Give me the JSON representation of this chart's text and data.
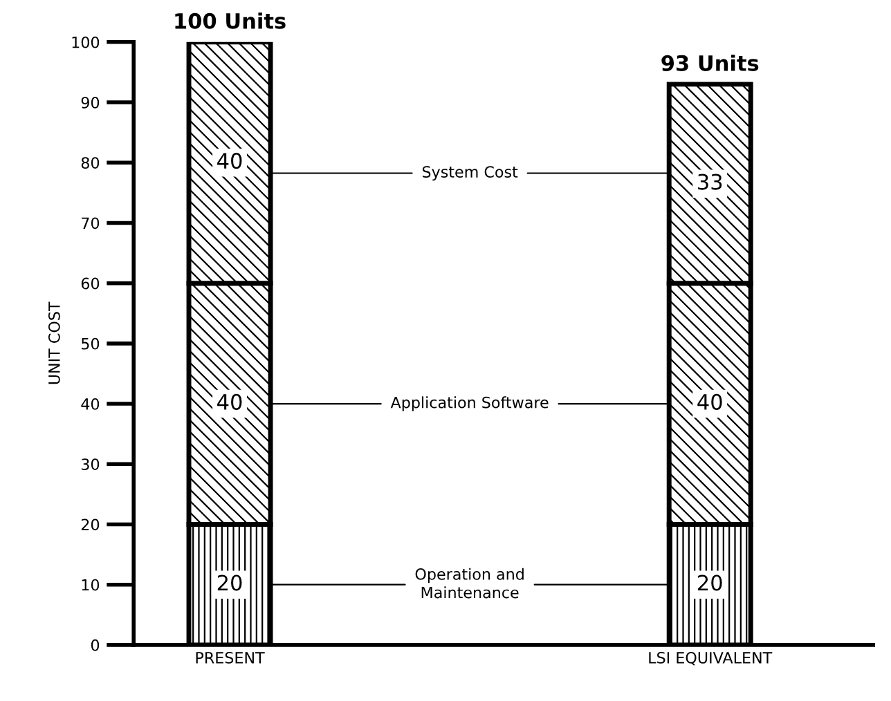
{
  "chart_data": {
    "type": "bar",
    "stacked": true,
    "ylabel": "UNIT COST",
    "categories": [
      "PRESENT",
      "LSI EQUIVALENT"
    ],
    "series": [
      {
        "name": "Operation and\nMaintenance",
        "color": "#000000",
        "values": [
          20,
          20
        ]
      },
      {
        "name": "Application Software",
        "color": "#000000",
        "values": [
          40,
          40
        ]
      },
      {
        "name": "System Cost",
        "color": "#000000",
        "values": [
          40,
          33
        ]
      }
    ],
    "ylim": [
      0,
      100
    ],
    "yticks": [
      0,
      10,
      20,
      30,
      40,
      50,
      60,
      70,
      80,
      90,
      100
    ],
    "data_labels": true,
    "totals": [
      "100 Units",
      "93 Units"
    ],
    "grid": false,
    "legend": false
  }
}
